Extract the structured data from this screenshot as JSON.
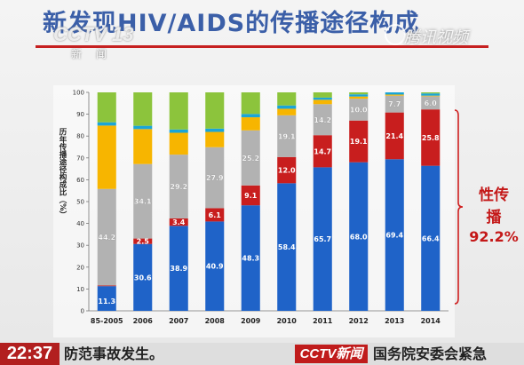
{
  "slide_title": "新发现HIV/AIDS的传播途径构成",
  "watermarks": {
    "cctv": "CCTV 13",
    "cctv_sub": "新 闻",
    "tencent": "腾讯视频"
  },
  "side_label": {
    "line1": "性传",
    "line2": "播",
    "percent": "92.2%"
  },
  "colors": {
    "blue": "#1f63c8",
    "red": "#c81e1e",
    "gray": "#b2b2b2",
    "orange": "#f7b500",
    "cyan": "#1aa5d8",
    "green": "#8cc43c",
    "title": "#3b5fa8"
  },
  "ticker": {
    "time": "22:37",
    "text": "防范事故发生。",
    "logo": "CCTV新闻",
    "text2": "国务院安委会紧急"
  },
  "chart_data": {
    "type": "bar",
    "stacked": true,
    "categories": [
      "85-2005",
      "2006",
      "2007",
      "2008",
      "2009",
      "2010",
      "2011",
      "2012",
      "2013",
      "2014"
    ],
    "ylabel": "历年传播途径构成比（%）",
    "ylim": [
      0,
      100
    ],
    "yticks": [
      0,
      10,
      20,
      30,
      40,
      50,
      60,
      70,
      80,
      90,
      100
    ],
    "series": [
      {
        "color": "#1f63c8",
        "values": [
          11.3,
          30.6,
          38.9,
          40.9,
          48.3,
          58.4,
          65.7,
          68.0,
          69.4,
          66.4
        ],
        "labels": [
          "11.3",
          "30.6",
          "38.9",
          "40.9",
          "48.3",
          "58.4",
          "65.7",
          "68.0",
          "69.4",
          "66.4"
        ]
      },
      {
        "color": "#c81e1e",
        "values": [
          0.3,
          2.5,
          3.4,
          6.1,
          9.1,
          12.0,
          14.7,
          19.1,
          21.4,
          25.8
        ],
        "labels": [
          "0.3",
          "2.5",
          "3.4",
          "6.1",
          "9.1",
          "12.0",
          "14.7",
          "19.1",
          "21.4",
          "25.8"
        ]
      },
      {
        "color": "#b2b2b2",
        "values": [
          44.2,
          34.1,
          29.2,
          27.9,
          25.2,
          19.1,
          14.2,
          10.0,
          7.7,
          6.0
        ],
        "labels": [
          "44.2",
          "34.1",
          "29.2",
          "27.9",
          "25.2",
          "19.1",
          "14.2",
          "10.0",
          "7.7",
          "6.0"
        ]
      },
      {
        "color": "#f7b500",
        "values": [
          29.0,
          16.0,
          10.0,
          7.0,
          6.0,
          3.0,
          2.0,
          1.0,
          0.5,
          0.3
        ]
      },
      {
        "color": "#1aa5d8",
        "values": [
          1.5,
          1.5,
          1.5,
          1.5,
          1.5,
          1.5,
          1.0,
          1.0,
          1.0,
          1.0
        ]
      },
      {
        "color": "#8cc43c",
        "values": [
          13.7,
          15.3,
          17.0,
          16.6,
          9.9,
          6.0,
          2.4,
          0.9,
          0.0,
          0.5
        ]
      }
    ]
  }
}
